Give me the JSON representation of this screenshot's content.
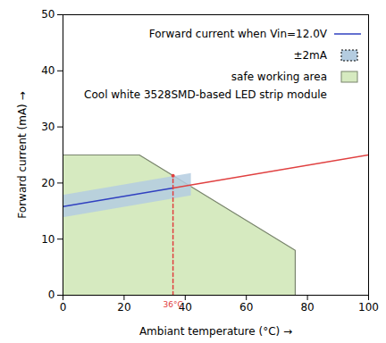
{
  "chart_data": {
    "type": "line",
    "subtitle": "Cool white 3528SMD-based LED strip module",
    "x_label": "Ambiant temperature (°C)",
    "y_label": "Forward current (mA)",
    "xlim": [
      0,
      100
    ],
    "xticks": [
      0,
      20,
      40,
      60,
      80,
      100
    ],
    "ylim": [
      0,
      50
    ],
    "yticks": [
      0,
      10,
      20,
      30,
      40,
      50
    ],
    "grid": false,
    "legend": "top-right",
    "series": [
      {
        "name": "safe working area",
        "type": "area",
        "color": "#d6eac0",
        "x": [
          0,
          25,
          76,
          76
        ],
        "values": [
          25,
          25,
          8,
          0
        ]
      },
      {
        "name": "±2mA",
        "type": "band",
        "color": "#b4cce0",
        "x": [
          0,
          42
        ],
        "values": [
          15.8,
          19.7
        ],
        "error": 2
      },
      {
        "name": "Forward current when Vin=12.0V",
        "type": "line",
        "color": "#3040c0",
        "x": [
          0,
          36
        ],
        "values": [
          15.8,
          19.1
        ]
      },
      {
        "type": "line",
        "color": "#e04040",
        "x": [
          36,
          100
        ],
        "values": [
          19.1,
          25
        ]
      }
    ],
    "annotations": [
      {
        "text": "36°C",
        "x": 36,
        "y": 21.3,
        "color": "#e04040",
        "line_style": "dashed",
        "marker": "dot"
      }
    ]
  }
}
